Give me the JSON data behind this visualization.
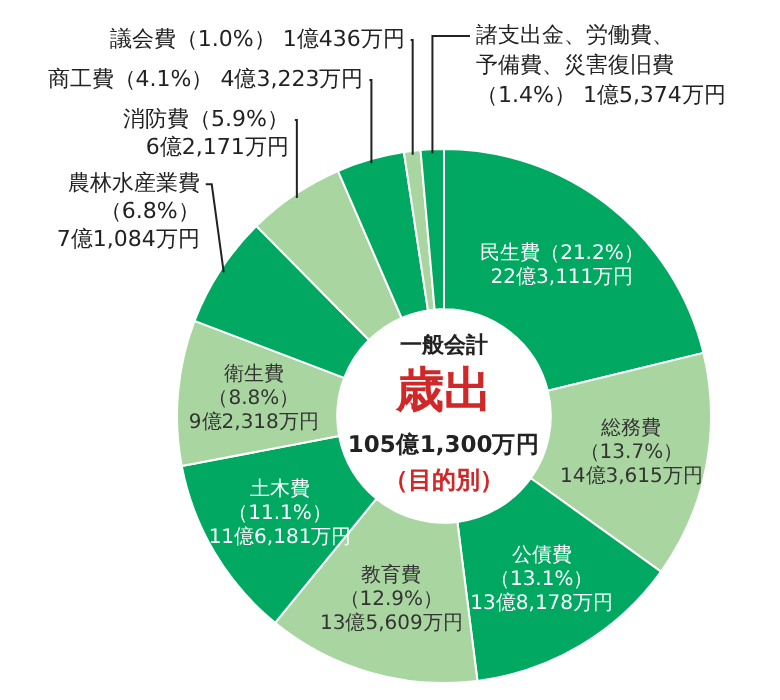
{
  "chart_data": {
    "type": "donut",
    "categories": [
      "民生費",
      "総務費",
      "公債費",
      "教育費",
      "土木費",
      "衛生費",
      "農林水産業費",
      "消防費",
      "商工費",
      "議会費",
      "諸支出金、労働費、予備費、災害復旧費"
    ],
    "values": [
      21.2,
      13.7,
      13.1,
      12.9,
      11.1,
      8.8,
      6.8,
      5.9,
      4.1,
      1.0,
      1.4
    ],
    "value_labels": [
      "（21.2%）",
      "（13.7%）",
      "（13.1%）",
      "（12.9%）",
      "（11.1%）",
      "（8.8%）",
      "（6.8%）",
      "（5.9%）",
      "（4.1%）",
      "（1.0%）",
      "（1.4%）"
    ],
    "colors": [
      "#00a862",
      "#a8d5a0",
      "#00a862",
      "#a8d5a0",
      "#00a862",
      "#a8d5a0",
      "#00a862",
      "#a8d5a0",
      "#00a862",
      "#a8d5a0",
      "#00a862"
    ],
    "annotations": [
      "一般会計",
      "歳出",
      "105億1,300万円",
      "（目的別）",
      "22億3,111万円",
      "14億3,615万円",
      "13億8,178万円",
      "13億5,609万円",
      "11億6,181万円",
      "9億2,318万円",
      "7億1,084万円",
      "6億2,171万円",
      "4億3,223万円",
      "1億436万円",
      "1億5,374万円"
    ],
    "legend": false
  }
}
